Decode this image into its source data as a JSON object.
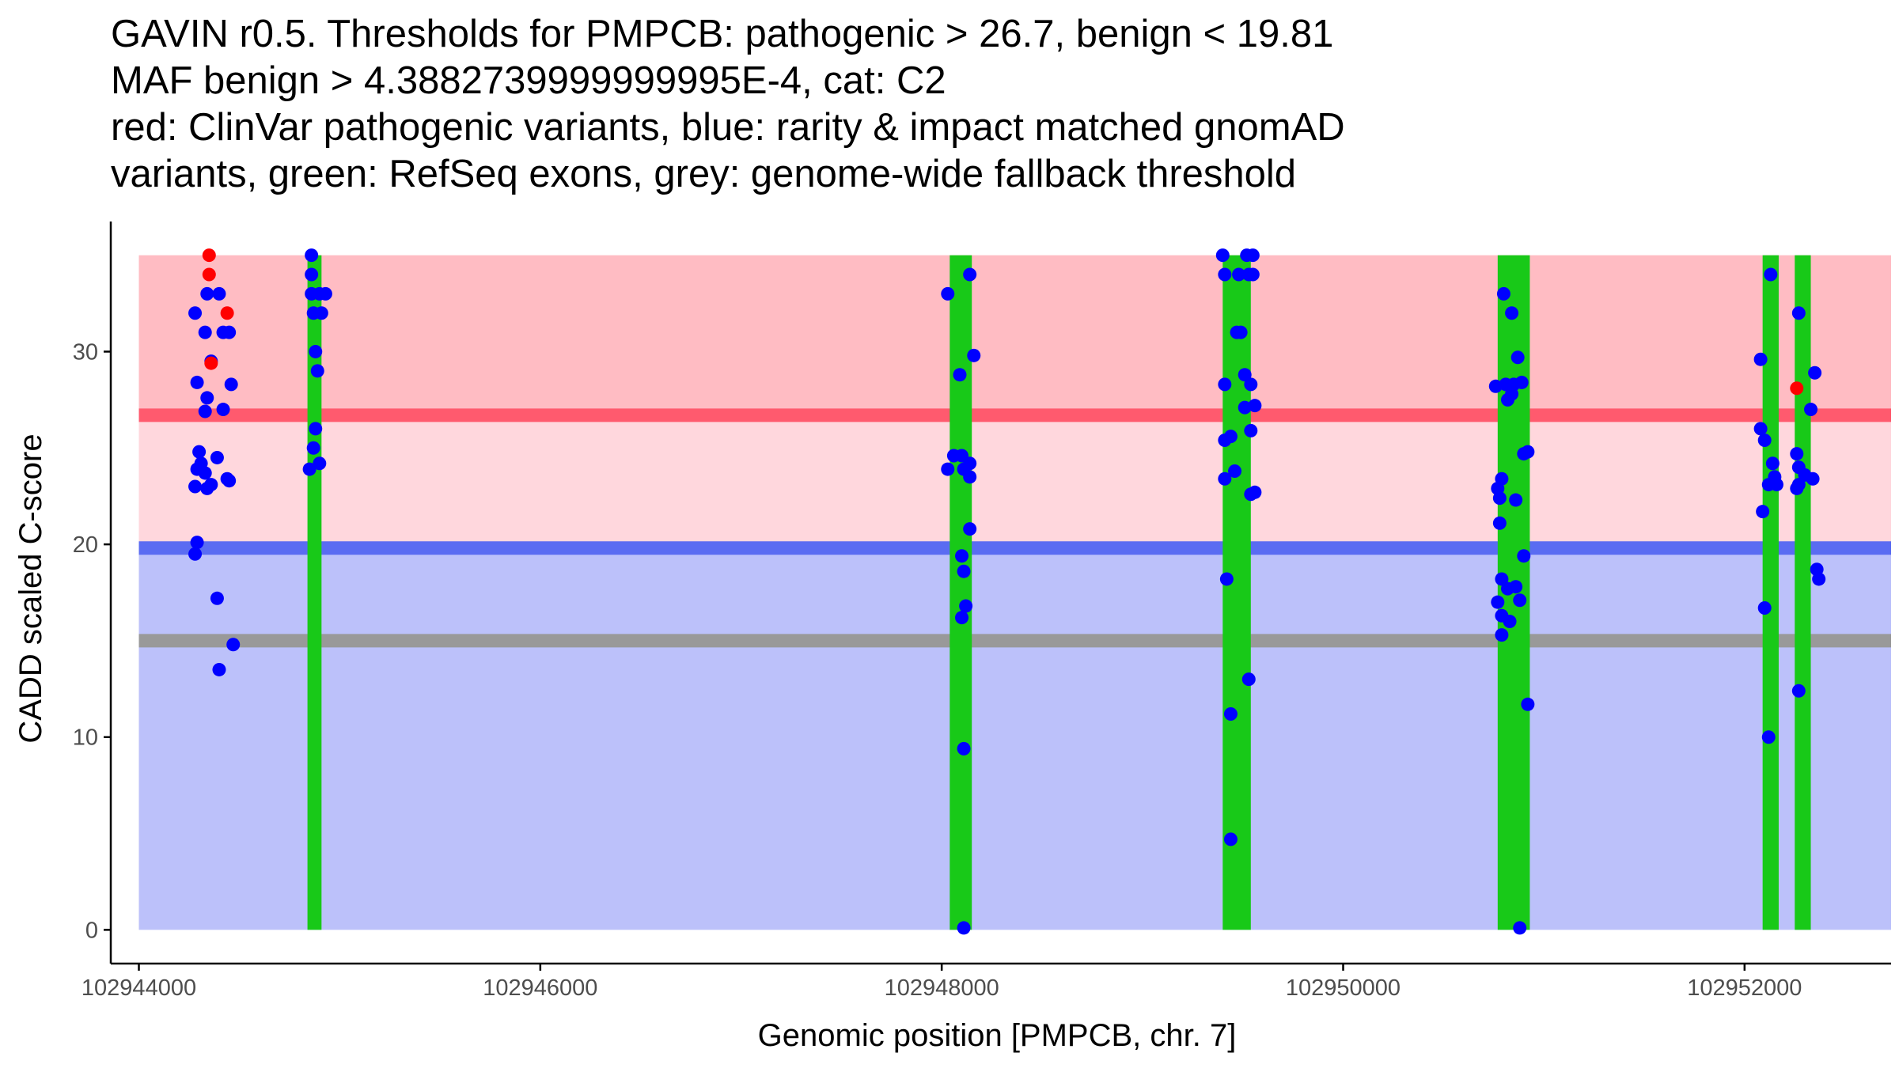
{
  "title_lines": [
    "GAVIN r0.5. Thresholds for PMPCB: pathogenic > 26.7, benign < 19.81",
    "MAF benign > 4.3882739999999995E-4, cat: C2",
    "red: ClinVar pathogenic variants, blue: rarity & impact matched gnomAD",
    "variants, green: RefSeq exons, grey: genome-wide fallback threshold"
  ],
  "colors": {
    "pathogenic_zone": "#ffbcc3",
    "uncertain_zone": "#ffd7dd",
    "benign_zone": "#bcc1fa",
    "pathogenic_line": "#ff5a6e",
    "benign_line": "#5a6cf2",
    "fallback_line": "#999999",
    "exon": "#18c918",
    "gnomad_point": "#0000ff",
    "clinvar_point": "#ff0000",
    "axis": "#000000"
  },
  "chart_data": {
    "type": "scatter",
    "xlabel": "Genomic position [PMPCB, chr. 7]",
    "ylabel": "CADD scaled C-score",
    "xlim": [
      102943860,
      102952730
    ],
    "ylim": [
      -1.75,
      36.75
    ],
    "x_ticks": [
      102944000,
      102946000,
      102948000,
      102950000,
      102952000
    ],
    "x_tick_labels": [
      "102944000",
      "102946000",
      "102948000",
      "102950000",
      "102952000"
    ],
    "y_ticks": [
      0,
      10,
      20,
      30
    ],
    "y_tick_labels": [
      "0",
      "10",
      "20",
      "30"
    ],
    "bands": [
      {
        "name": "benign-zone",
        "x0": 102944000,
        "x1": 102952730,
        "y0": 0,
        "y1": 19.81
      },
      {
        "name": "uncertain-zone",
        "x0": 102944000,
        "x1": 102952730,
        "y0": 19.81,
        "y1": 26.7
      },
      {
        "name": "pathogenic-zone",
        "x0": 102944000,
        "x1": 102952730,
        "y0": 26.7,
        "y1": 35
      }
    ],
    "thresholds": [
      {
        "name": "pathogenic-threshold-line",
        "y": 26.7
      },
      {
        "name": "benign-threshold-line",
        "y": 19.81
      },
      {
        "name": "fallback-threshold-line",
        "y": 15.0
      }
    ],
    "exons": [
      {
        "start": 102944840,
        "end": 102944910
      },
      {
        "start": 102948040,
        "end": 102948150
      },
      {
        "start": 102949400,
        "end": 102949540
      },
      {
        "start": 102950770,
        "end": 102950930
      },
      {
        "start": 102952090,
        "end": 102952170
      },
      {
        "start": 102952250,
        "end": 102952330
      }
    ],
    "series": [
      {
        "name": "ClinVar pathogenic variants",
        "points": [
          [
            102944350,
            35.0
          ],
          [
            102944350,
            34.0
          ],
          [
            102944440,
            32.0
          ],
          [
            102944360,
            29.4
          ],
          [
            102952260,
            28.1
          ]
        ]
      },
      {
        "name": "rarity & impact matched gnomAD variants",
        "points": [
          [
            102944280,
            32.0
          ],
          [
            102944340,
            33.0
          ],
          [
            102944400,
            33.0
          ],
          [
            102944330,
            31.0
          ],
          [
            102944420,
            31.0
          ],
          [
            102944450,
            31.0
          ],
          [
            102944360,
            29.5
          ],
          [
            102944290,
            28.4
          ],
          [
            102944460,
            28.3
          ],
          [
            102944340,
            27.6
          ],
          [
            102944420,
            27.0
          ],
          [
            102944330,
            26.9
          ],
          [
            102944300,
            24.8
          ],
          [
            102944390,
            24.5
          ],
          [
            102944310,
            24.2
          ],
          [
            102944290,
            23.9
          ],
          [
            102944330,
            23.7
          ],
          [
            102944440,
            23.4
          ],
          [
            102944450,
            23.3
          ],
          [
            102944280,
            23.0
          ],
          [
            102944340,
            22.9
          ],
          [
            102944360,
            23.1
          ],
          [
            102944290,
            20.1
          ],
          [
            102944280,
            19.5
          ],
          [
            102944390,
            17.2
          ],
          [
            102944470,
            14.8
          ],
          [
            102944400,
            13.5
          ],
          [
            102944860,
            35.0
          ],
          [
            102944860,
            34.0
          ],
          [
            102944860,
            33.0
          ],
          [
            102944900,
            33.0
          ],
          [
            102944930,
            33.0
          ],
          [
            102944870,
            32.0
          ],
          [
            102944910,
            32.0
          ],
          [
            102944880,
            30.0
          ],
          [
            102944890,
            29.0
          ],
          [
            102944880,
            26.0
          ],
          [
            102944870,
            25.0
          ],
          [
            102944900,
            24.2
          ],
          [
            102944850,
            23.9
          ],
          [
            102948030,
            33.0
          ],
          [
            102948140,
            34.0
          ],
          [
            102948160,
            29.8
          ],
          [
            102948090,
            28.8
          ],
          [
            102948060,
            24.6
          ],
          [
            102948100,
            24.6
          ],
          [
            102948140,
            24.2
          ],
          [
            102948030,
            23.9
          ],
          [
            102948110,
            23.9
          ],
          [
            102948140,
            23.5
          ],
          [
            102948140,
            20.8
          ],
          [
            102948100,
            19.4
          ],
          [
            102948110,
            18.6
          ],
          [
            102948120,
            16.8
          ],
          [
            102948100,
            16.2
          ],
          [
            102948110,
            9.4
          ],
          [
            102948110,
            0.1
          ],
          [
            102949400,
            35.0
          ],
          [
            102949520,
            35.0
          ],
          [
            102949550,
            35.0
          ],
          [
            102949410,
            34.0
          ],
          [
            102949480,
            34.0
          ],
          [
            102949530,
            34.0
          ],
          [
            102949550,
            34.0
          ],
          [
            102949470,
            31.0
          ],
          [
            102949490,
            31.0
          ],
          [
            102949510,
            28.8
          ],
          [
            102949410,
            28.3
          ],
          [
            102949540,
            28.3
          ],
          [
            102949560,
            27.2
          ],
          [
            102949510,
            27.1
          ],
          [
            102949540,
            25.9
          ],
          [
            102949440,
            25.6
          ],
          [
            102949410,
            25.4
          ],
          [
            102949460,
            23.8
          ],
          [
            102949410,
            23.4
          ],
          [
            102949540,
            22.6
          ],
          [
            102949560,
            22.7
          ],
          [
            102949420,
            18.2
          ],
          [
            102949530,
            13.0
          ],
          [
            102949440,
            11.2
          ],
          [
            102949440,
            4.7
          ],
          [
            102950800,
            33.0
          ],
          [
            102950840,
            32.0
          ],
          [
            102950870,
            29.7
          ],
          [
            102950760,
            28.2
          ],
          [
            102950810,
            28.3
          ],
          [
            102950890,
            28.4
          ],
          [
            102950850,
            28.3
          ],
          [
            102950820,
            27.5
          ],
          [
            102950840,
            27.8
          ],
          [
            102950900,
            24.7
          ],
          [
            102950920,
            24.8
          ],
          [
            102950790,
            23.4
          ],
          [
            102950770,
            22.9
          ],
          [
            102950780,
            22.4
          ],
          [
            102950860,
            22.3
          ],
          [
            102950780,
            21.1
          ],
          [
            102950900,
            19.4
          ],
          [
            102950790,
            18.2
          ],
          [
            102950820,
            17.7
          ],
          [
            102950860,
            17.8
          ],
          [
            102950770,
            17.0
          ],
          [
            102950880,
            17.1
          ],
          [
            102950790,
            16.3
          ],
          [
            102950830,
            16.0
          ],
          [
            102950790,
            15.3
          ],
          [
            102950920,
            11.7
          ],
          [
            102950880,
            0.1
          ],
          [
            102952130,
            34.0
          ],
          [
            102952270,
            32.0
          ],
          [
            102952080,
            29.6
          ],
          [
            102952350,
            28.9
          ],
          [
            102952330,
            27.0
          ],
          [
            102952080,
            26.0
          ],
          [
            102952100,
            25.4
          ],
          [
            102952260,
            24.7
          ],
          [
            102952140,
            24.2
          ],
          [
            102952270,
            24.0
          ],
          [
            102952150,
            23.5
          ],
          [
            102952300,
            23.6
          ],
          [
            102952120,
            23.1
          ],
          [
            102952340,
            23.4
          ],
          [
            102952160,
            23.1
          ],
          [
            102952270,
            23.1
          ],
          [
            102952260,
            22.9
          ],
          [
            102952090,
            21.7
          ],
          [
            102952360,
            18.7
          ],
          [
            102952370,
            18.2
          ],
          [
            102952100,
            16.7
          ],
          [
            102952120,
            10.0
          ],
          [
            102952270,
            12.4
          ]
        ]
      }
    ]
  }
}
